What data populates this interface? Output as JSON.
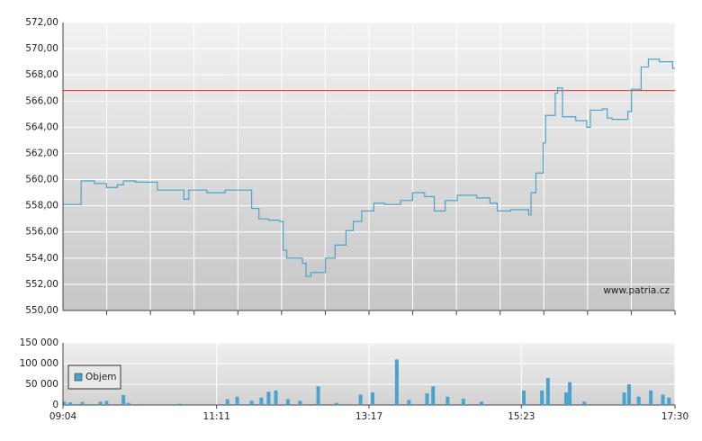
{
  "chart_data": [
    {
      "type": "line",
      "step": "after",
      "color": "#4aa3cc",
      "xlim": [
        544,
        1050
      ],
      "x": [
        544,
        559,
        570,
        580,
        589,
        594,
        604,
        622,
        641,
        644,
        648,
        663,
        678,
        691,
        700,
        706,
        714,
        723,
        726,
        729,
        742,
        745,
        749,
        761,
        769,
        778,
        784,
        791,
        801,
        810,
        823,
        833,
        843,
        851,
        860,
        870,
        886,
        897,
        903,
        914,
        929,
        931,
        935,
        941,
        943,
        951,
        953,
        957,
        968,
        977,
        980,
        990,
        994,
        998,
        1011,
        1014,
        1022,
        1028,
        1037,
        1048
      ],
      "values": [
        558.1,
        559.9,
        559.7,
        559.4,
        559.6,
        559.9,
        559.8,
        559.2,
        559.2,
        558.5,
        559.2,
        559.0,
        559.2,
        559.2,
        557.8,
        557.0,
        556.9,
        556.8,
        554.6,
        554.0,
        553.6,
        552.6,
        552.9,
        554.0,
        555.0,
        556.1,
        556.8,
        557.6,
        558.2,
        558.1,
        558.4,
        559.0,
        558.7,
        557.6,
        558.4,
        558.8,
        558.6,
        558.2,
        557.6,
        557.7,
        557.3,
        559.0,
        560.5,
        562.8,
        564.9,
        566.6,
        567.0,
        564.8,
        564.5,
        564.0,
        565.3,
        565.4,
        564.7,
        564.6,
        565.2,
        566.9,
        568.6,
        569.2,
        569.0,
        568.5
      ],
      "ylim": [
        550,
        572
      ],
      "yticks": [
        {
          "value": 550,
          "label": "550,00"
        },
        {
          "value": 552,
          "label": "552,00"
        },
        {
          "value": 554,
          "label": "554,00"
        },
        {
          "value": 556,
          "label": "556,00"
        },
        {
          "value": 558,
          "label": "558,00"
        },
        {
          "value": 560,
          "label": "560,00"
        },
        {
          "value": 562,
          "label": "562,00"
        },
        {
          "value": 564,
          "label": "564,00"
        },
        {
          "value": 566,
          "label": "566,00"
        },
        {
          "value": 568,
          "label": "568,00"
        },
        {
          "value": 570,
          "label": "570,00"
        },
        {
          "value": 572,
          "label": "572,00"
        }
      ],
      "reference_line": 566.8,
      "reference_color": "#e03030",
      "annotation": "www.patria.cz",
      "grid": true
    },
    {
      "type": "bar",
      "xlim": [
        544,
        1050
      ],
      "xticks": [
        {
          "value": 544,
          "label": "09:04"
        },
        {
          "value": 671,
          "label": "11:11"
        },
        {
          "value": 797,
          "label": "13:17"
        },
        {
          "value": 923,
          "label": "15:23"
        },
        {
          "value": 1050,
          "label": "17:30"
        }
      ],
      "x": [
        545,
        550,
        560,
        575,
        580,
        594,
        598,
        640,
        680,
        688,
        700,
        708,
        714,
        720,
        730,
        740,
        755,
        770,
        790,
        800,
        820,
        830,
        845,
        850,
        862,
        875,
        890,
        925,
        940,
        945,
        960,
        963,
        975,
        1008,
        1012,
        1020,
        1030,
        1040,
        1045
      ],
      "series": [
        {
          "name": "Objem",
          "color": "#4aa3cc",
          "values": [
            8000,
            6000,
            7000,
            8000,
            10000,
            24000,
            5000,
            3000,
            14000,
            20000,
            10000,
            18000,
            32000,
            35000,
            14000,
            10000,
            45000,
            5000,
            25000,
            30000,
            110000,
            12000,
            28000,
            45000,
            20000,
            15000,
            8000,
            35000,
            35000,
            65000,
            30000,
            55000,
            8000,
            30000,
            50000,
            20000,
            35000,
            25000,
            18000
          ]
        }
      ],
      "ylim": [
        0,
        150000
      ],
      "yticks": [
        0,
        {
          "value": 50000,
          "label": "50 000"
        },
        {
          "value": 100000,
          "label": "100 000"
        },
        {
          "value": 150000,
          "label": "150 000"
        }
      ],
      "grid": true,
      "legend": "upper left"
    }
  ]
}
